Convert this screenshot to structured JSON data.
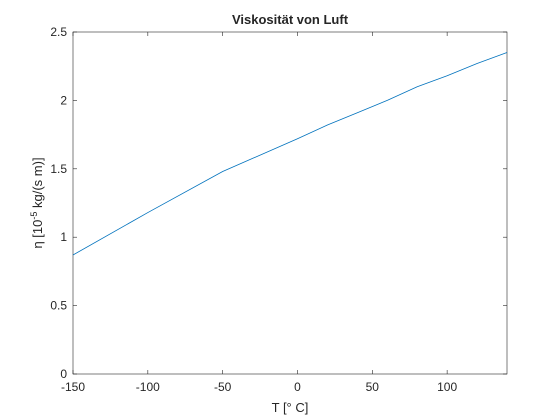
{
  "chart_data": {
    "type": "line",
    "title": "Viskosität von Luft",
    "x_label": "T [° C]",
    "y_label": {
      "prefix": "η [10",
      "exponent": "-5",
      "suffix": " kg/(s m)]"
    },
    "x": [
      -150,
      -100,
      -50,
      0,
      20,
      40,
      60,
      80,
      100,
      120,
      140
    ],
    "series": [
      {
        "name": "Viskosität",
        "color": "#0072bd",
        "values": [
          0.87,
          1.18,
          1.48,
          1.72,
          1.82,
          1.91,
          2.0,
          2.1,
          2.18,
          2.27,
          2.35
        ]
      }
    ],
    "xlim": [
      -150,
      140
    ],
    "xticks": [
      -150,
      -100,
      -50,
      0,
      50,
      100
    ],
    "ylim": [
      0,
      2.5
    ],
    "yticks": [
      0,
      0.5,
      1,
      1.5,
      2,
      2.5
    ],
    "grid": false
  }
}
